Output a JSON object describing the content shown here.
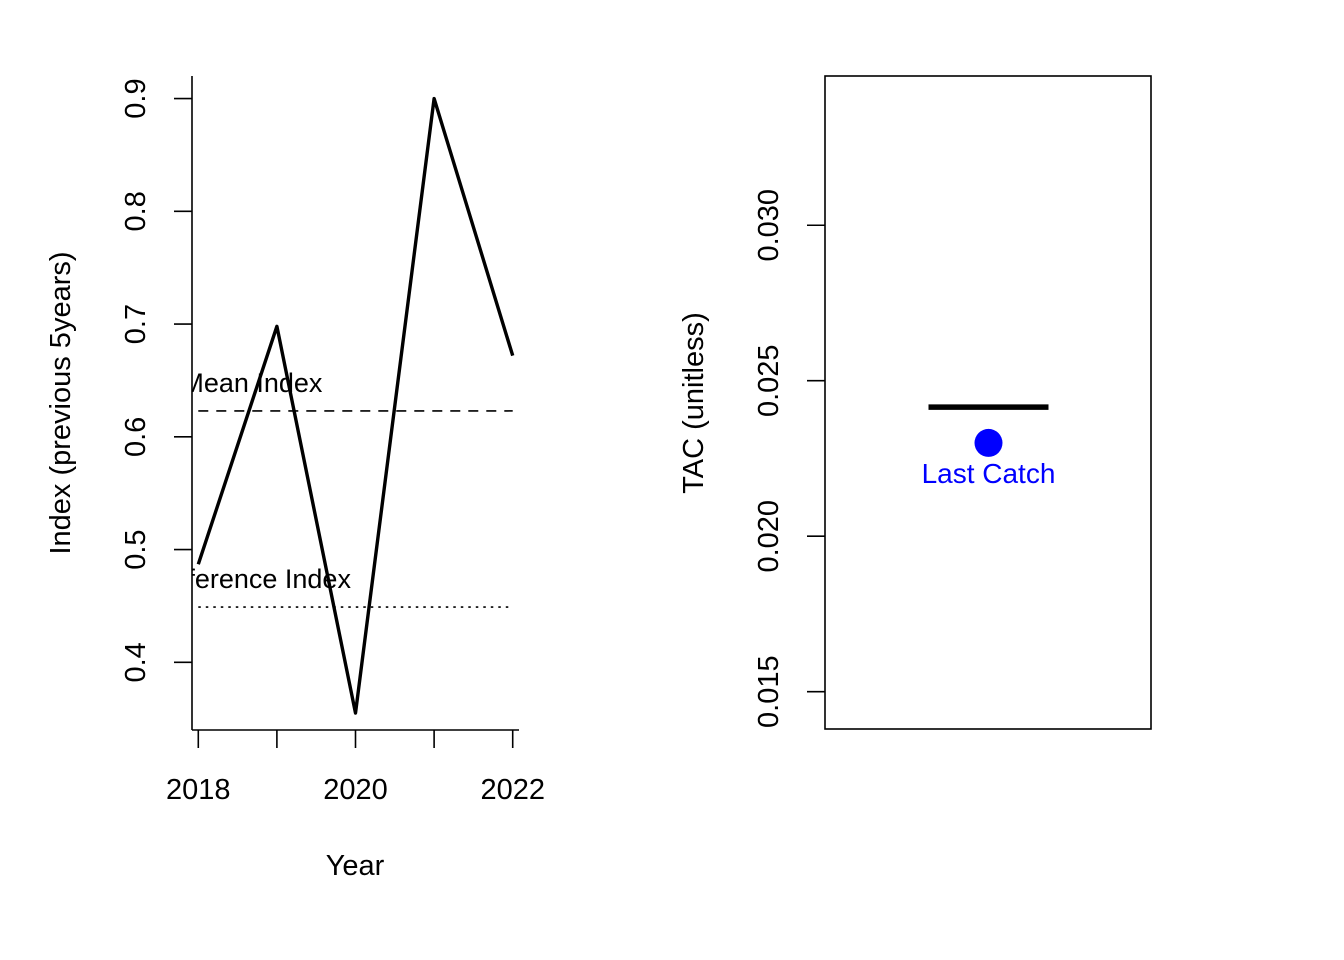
{
  "chart_data": [
    {
      "type": "line",
      "xlabel": "Year",
      "ylabel": "Index (previous 5years)",
      "x": [
        2018,
        2019,
        2020,
        2021,
        2022
      ],
      "y": [
        0.487,
        0.698,
        0.355,
        0.9,
        0.672
      ],
      "xlim": [
        2017.92,
        2022.08
      ],
      "ylim": [
        0.34,
        0.92
      ],
      "xticks": [
        2018,
        2019,
        2020,
        2021,
        2022
      ],
      "xtick_labels": [
        "2018",
        "",
        "2020",
        "",
        "2022"
      ],
      "yticks": [
        0.4,
        0.5,
        0.6,
        0.7,
        0.8,
        0.9
      ],
      "ytick_labels": [
        "0.4",
        "0.5",
        "0.6",
        "0.7",
        "0.8",
        "0.9"
      ],
      "reference_lines": [
        {
          "name": "Mean Index",
          "value": 0.623,
          "style": "dashed",
          "x_from": 2018,
          "x_to": 2022,
          "label": "Mean Index"
        },
        {
          "name": "Reference Index",
          "value": 0.449,
          "style": "dotted",
          "x_from": 2018,
          "x_to": 2022,
          "label": "Reference Index"
        }
      ],
      "box": "left-bottom"
    },
    {
      "type": "scatter",
      "ylabel": "TAC (unitless)",
      "ylim": [
        0.0138,
        0.0348
      ],
      "yticks": [
        0.015,
        0.02,
        0.025,
        0.03
      ],
      "ytick_labels": [
        "0.015",
        "0.020",
        "0.025",
        "0.030"
      ],
      "tac": 0.02415,
      "last_catch": 0.023,
      "last_catch_label": "Last Catch",
      "last_catch_color": "#0000ff",
      "box": "full"
    }
  ]
}
